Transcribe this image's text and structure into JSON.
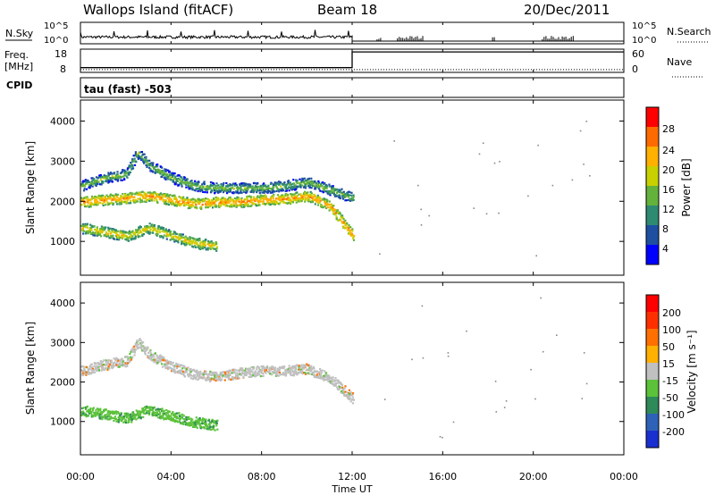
{
  "header": {
    "title": "Wallops Island (fitACF)",
    "beam": "Beam 18",
    "date": "20/Dec/2011"
  },
  "nsky_panel": {
    "left_label": "N.Sky",
    "left_ticks": [
      "10^5",
      "10^0"
    ],
    "right_ticks": [
      "10^5",
      "10^0"
    ],
    "right_label": "N.Search"
  },
  "freq_panel": {
    "left_label_1": "Freq.",
    "left_label_2": "[MHz]",
    "left_ticks": [
      "18",
      "8"
    ],
    "right_ticks": [
      "60",
      "0"
    ],
    "right_label": "Nave",
    "cpid_label": "CPID"
  },
  "cpid_panel": {
    "text": "tau (fast) -503"
  },
  "power_panel": {
    "ylabel": "Slant Range [km]",
    "yticks": [
      "4000",
      "3000",
      "2000",
      "1000"
    ],
    "colorbar_label": "Power [dB]",
    "colorbar_ticks": [
      "28",
      "24",
      "20",
      "16",
      "12",
      "8",
      "4"
    ],
    "colorbar_colors": [
      "#0000ff",
      "#1e4fa0",
      "#2f8a72",
      "#63b23c",
      "#c8d000",
      "#ffb000",
      "#ff6a00",
      "#ff0000"
    ]
  },
  "velocity_panel": {
    "ylabel": "Slant Range [km]",
    "yticks": [
      "4000",
      "3000",
      "2000",
      "1000"
    ],
    "colorbar_label": "Velocity [m s⁻¹]",
    "colorbar_ticks": [
      "200",
      "100",
      "50",
      "15",
      "-15",
      "-50",
      "-100",
      "-200"
    ],
    "colorbar_colors": [
      "#1a2fd0",
      "#2e62b8",
      "#2f8a5a",
      "#5cc23a",
      "#c0c0c0",
      "#ffb000",
      "#ff7000",
      "#ff3000",
      "#ff0000"
    ]
  },
  "xaxis": {
    "ticks": [
      "00:00",
      "04:00",
      "08:00",
      "12:00",
      "16:00",
      "20:00",
      "00:00"
    ],
    "label": "Time UT"
  },
  "chart_data": {
    "type": "heatmap",
    "x_range_hours": [
      0,
      24
    ],
    "y_range_km": [
      180,
      4500
    ],
    "data_cutoff_hours": 12,
    "freq_series": {
      "before_12": 9.5,
      "after_12": 17.5
    },
    "nave_series": {
      "before_12": 3,
      "after_12": 50
    },
    "power_features": [
      {
        "name": "main_band",
        "t": [
          0,
          1,
          2,
          3,
          4,
          5,
          6,
          7,
          8,
          9,
          10,
          11,
          12
        ],
        "range": [
          2000,
          2050,
          2100,
          2150,
          2050,
          1950,
          2000,
          2000,
          2050,
          2080,
          2150,
          1900,
          1150
        ],
        "power_db": 28
      },
      {
        "name": "upper_band",
        "t": [
          0,
          1,
          2,
          2.5,
          3,
          4,
          5,
          6,
          7,
          8,
          9,
          10,
          11,
          12
        ],
        "range": [
          2400,
          2600,
          2700,
          3250,
          2900,
          2600,
          2400,
          2350,
          2350,
          2350,
          2400,
          2500,
          2300,
          2100
        ],
        "power_db": 18
      },
      {
        "name": "near_band",
        "t": [
          0,
          1,
          2,
          3,
          4,
          5,
          6
        ],
        "range": [
          1350,
          1250,
          1150,
          1350,
          1150,
          980,
          900
        ],
        "power_db": 24
      }
    ],
    "velocity_features": [
      {
        "name": "ground_scatter",
        "t": [
          0,
          1,
          2,
          2.5,
          3,
          4,
          5,
          6,
          7,
          8,
          9,
          10,
          11,
          12
        ],
        "range": [
          2300,
          2450,
          2550,
          3000,
          2700,
          2400,
          2200,
          2150,
          2250,
          2300,
          2300,
          2350,
          2100,
          1600
        ],
        "velocity": 0
      },
      {
        "name": "near_band",
        "t": [
          0,
          1,
          2,
          3,
          4,
          5,
          6
        ],
        "range": [
          1300,
          1200,
          1100,
          1300,
          1150,
          1000,
          920
        ],
        "velocity": 30
      }
    ]
  }
}
